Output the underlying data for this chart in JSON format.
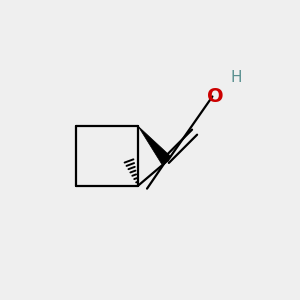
{
  "bg_color": "#efefef",
  "ring_TL": [
    0.25,
    0.38
  ],
  "ring_TR": [
    0.46,
    0.38
  ],
  "ring_BL": [
    0.25,
    0.58
  ],
  "ring_BR": [
    0.46,
    0.58
  ],
  "O_color": "#cc0000",
  "H_color": "#5a9090"
}
